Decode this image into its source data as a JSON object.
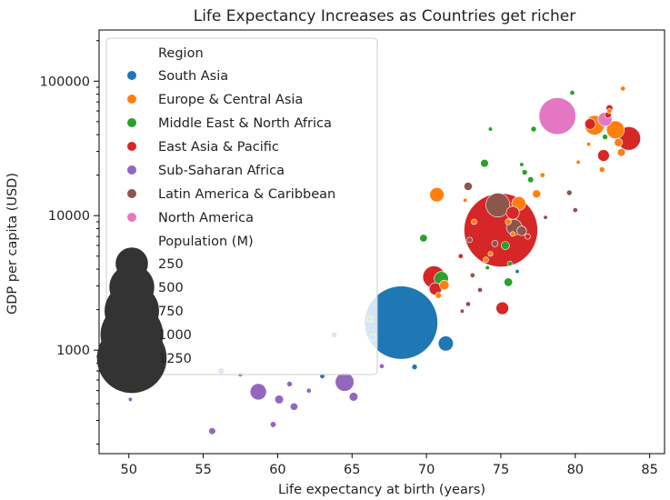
{
  "chart_data": {
    "type": "scatter",
    "title": "Life Expectancy Increases as Countries get richer",
    "xlabel": "Life expectancy at birth (years)",
    "ylabel": "GDP per capita (USD)",
    "xlim": [
      48,
      86
    ],
    "ylim": [
      170,
      240000
    ],
    "yscale": "log",
    "xticks": [
      50,
      55,
      60,
      65,
      70,
      75,
      80,
      85
    ],
    "yticks": [
      1000,
      10000,
      100000
    ],
    "ytick_labels": [
      "1000",
      "10000",
      "100000"
    ],
    "grid": false,
    "legend": {
      "placement": "top-left",
      "hue_title": "Region",
      "size_title": "Population (M)",
      "size_levels": [
        250,
        500,
        750,
        1000,
        1250
      ]
    },
    "series": [
      {
        "name": "South Asia",
        "color": "#1f77b4",
        "points": [
          {
            "x": 68.3,
            "y": 1600,
            "pop": 1380
          },
          {
            "x": 71.3,
            "y": 1120,
            "pop": 45
          },
          {
            "x": 69.2,
            "y": 750,
            "pop": 3
          },
          {
            "x": 63.0,
            "y": 640,
            "pop": 2
          },
          {
            "x": 76.1,
            "y": 3850,
            "pop": 1
          },
          {
            "x": 66.4,
            "y": 1250,
            "pop": 6
          }
        ]
      },
      {
        "name": "Europe & Central Asia",
        "color": "#ff7f0e",
        "points": [
          {
            "x": 81.3,
            "y": 47000,
            "pop": 83
          },
          {
            "x": 82.7,
            "y": 43500,
            "pop": 67
          },
          {
            "x": 83.1,
            "y": 29500,
            "pop": 9
          },
          {
            "x": 82.9,
            "y": 35000,
            "pop": 10
          },
          {
            "x": 81.8,
            "y": 22000,
            "pop": 3
          },
          {
            "x": 70.7,
            "y": 14300,
            "pop": 40
          },
          {
            "x": 77.4,
            "y": 14500,
            "pop": 10
          },
          {
            "x": 76.2,
            "y": 12300,
            "pop": 38
          },
          {
            "x": 75.5,
            "y": 9000,
            "pop": 4
          },
          {
            "x": 73.2,
            "y": 9000,
            "pop": 3
          },
          {
            "x": 71.2,
            "y": 3050,
            "pop": 15
          },
          {
            "x": 70.8,
            "y": 2550,
            "pop": 4
          },
          {
            "x": 74.0,
            "y": 4700,
            "pop": 3
          },
          {
            "x": 77.8,
            "y": 20000,
            "pop": 2
          },
          {
            "x": 80.2,
            "y": 25000,
            "pop": 1
          },
          {
            "x": 83.2,
            "y": 88000,
            "pop": 2
          },
          {
            "x": 82.3,
            "y": 60000,
            "pop": 2
          },
          {
            "x": 80.9,
            "y": 34000,
            "pop": 1
          },
          {
            "x": 72.6,
            "y": 13000,
            "pop": 1
          },
          {
            "x": 75.8,
            "y": 7300,
            "pop": 2
          },
          {
            "x": 74.3,
            "y": 5200,
            "pop": 2
          }
        ]
      },
      {
        "name": "Middle East & North Africa",
        "color": "#2ca02c",
        "points": [
          {
            "x": 73.9,
            "y": 24500,
            "pop": 9
          },
          {
            "x": 75.3,
            "y": 6000,
            "pop": 10
          },
          {
            "x": 75.5,
            "y": 3200,
            "pop": 11
          },
          {
            "x": 71.0,
            "y": 3400,
            "pop": 40
          },
          {
            "x": 69.8,
            "y": 6800,
            "pop": 8
          },
          {
            "x": 77.0,
            "y": 18500,
            "pop": 4
          },
          {
            "x": 77.2,
            "y": 44000,
            "pop": 3
          },
          {
            "x": 79.8,
            "y": 82000,
            "pop": 2
          },
          {
            "x": 82.0,
            "y": 38500,
            "pop": 3
          },
          {
            "x": 74.3,
            "y": 44000,
            "pop": 1
          },
          {
            "x": 76.6,
            "y": 21000,
            "pop": 3
          },
          {
            "x": 76.4,
            "y": 24000,
            "pop": 1
          },
          {
            "x": 66.2,
            "y": 1700,
            "pop": 4
          },
          {
            "x": 75.6,
            "y": 4400,
            "pop": 2
          },
          {
            "x": 74.1,
            "y": 4100,
            "pop": 1
          }
        ]
      },
      {
        "name": "East Asia & Pacific",
        "color": "#d62728",
        "points": [
          {
            "x": 75.0,
            "y": 7800,
            "pop": 1400
          },
          {
            "x": 70.5,
            "y": 3500,
            "pop": 110
          },
          {
            "x": 70.6,
            "y": 2850,
            "pop": 28
          },
          {
            "x": 83.6,
            "y": 37500,
            "pop": 125
          },
          {
            "x": 82.3,
            "y": 63000,
            "pop": 6
          },
          {
            "x": 81.9,
            "y": 28000,
            "pop": 25
          },
          {
            "x": 75.1,
            "y": 2050,
            "pop": 30
          },
          {
            "x": 75.8,
            "y": 10500,
            "pop": 32
          },
          {
            "x": 82.2,
            "y": 56000,
            "pop": 5
          },
          {
            "x": 81.0,
            "y": 48000,
            "pop": 20
          },
          {
            "x": 76.8,
            "y": 7000,
            "pop": 3
          },
          {
            "x": 72.3,
            "y": 5000,
            "pop": 2
          }
        ]
      },
      {
        "name": "Sub-Saharan Africa",
        "color": "#9467bd",
        "points": [
          {
            "x": 58.7,
            "y": 490,
            "pop": 55
          },
          {
            "x": 64.5,
            "y": 580,
            "pop": 75
          },
          {
            "x": 65.1,
            "y": 450,
            "pop": 12
          },
          {
            "x": 60.1,
            "y": 430,
            "pop": 12
          },
          {
            "x": 61.1,
            "y": 380,
            "pop": 8
          },
          {
            "x": 59.7,
            "y": 280,
            "pop": 4
          },
          {
            "x": 55.6,
            "y": 250,
            "pop": 6
          },
          {
            "x": 50.1,
            "y": 430,
            "pop": 1
          },
          {
            "x": 56.2,
            "y": 700,
            "pop": 5
          },
          {
            "x": 60.8,
            "y": 560,
            "pop": 3
          },
          {
            "x": 62.1,
            "y": 500,
            "pop": 2
          },
          {
            "x": 67.0,
            "y": 760,
            "pop": 2
          },
          {
            "x": 57.5,
            "y": 660,
            "pop": 2
          }
        ]
      },
      {
        "name": "Latin America & Caribbean",
        "color": "#8c564b",
        "points": [
          {
            "x": 74.8,
            "y": 12000,
            "pop": 130
          },
          {
            "x": 75.9,
            "y": 8200,
            "pop": 50
          },
          {
            "x": 76.4,
            "y": 7700,
            "pop": 15
          },
          {
            "x": 72.8,
            "y": 16500,
            "pop": 10
          },
          {
            "x": 79.6,
            "y": 14800,
            "pop": 3
          },
          {
            "x": 80.0,
            "y": 11000,
            "pop": 2
          },
          {
            "x": 72.9,
            "y": 6600,
            "pop": 3
          },
          {
            "x": 74.6,
            "y": 6200,
            "pop": 5
          },
          {
            "x": 73.1,
            "y": 3600,
            "pop": 2
          },
          {
            "x": 72.8,
            "y": 2200,
            "pop": 2
          },
          {
            "x": 72.4,
            "y": 1950,
            "pop": 1
          },
          {
            "x": 73.6,
            "y": 2800,
            "pop": 2
          },
          {
            "x": 63.8,
            "y": 1300,
            "pop": 3
          },
          {
            "x": 78.0,
            "y": 9700,
            "pop": 1
          }
        ]
      },
      {
        "name": "North America",
        "color": "#e377c2",
        "points": [
          {
            "x": 78.8,
            "y": 55000,
            "pop": 330
          },
          {
            "x": 82.0,
            "y": 52000,
            "pop": 38
          }
        ]
      }
    ]
  }
}
